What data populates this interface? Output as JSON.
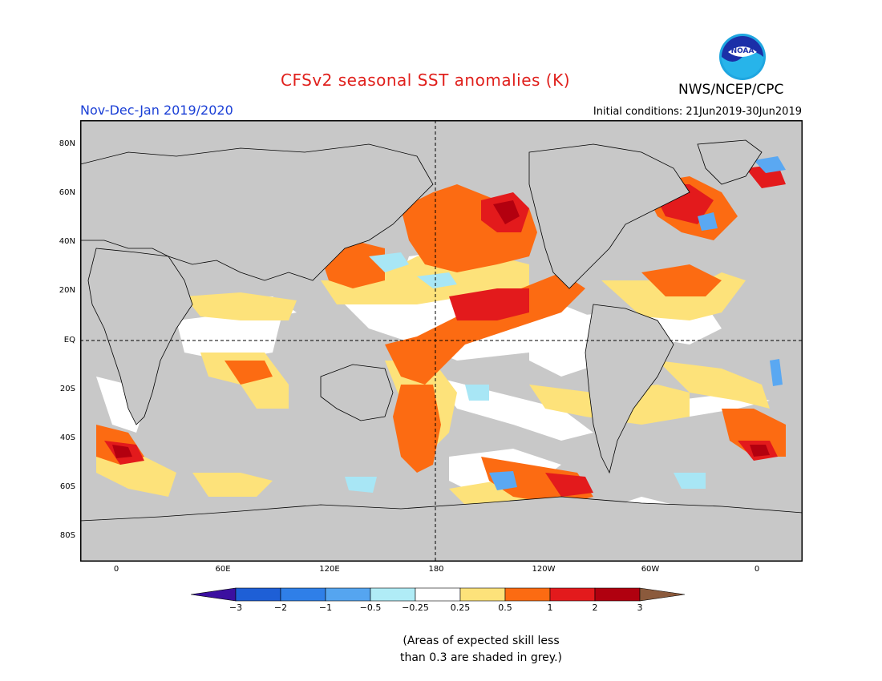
{
  "header": {
    "title": "CFSv2 seasonal SST anomalies (K)",
    "agency": "NWS/NCEP/CPC",
    "season": "Nov-Dec-Jan 2019/2020",
    "initial_conditions": "Initial conditions: 21Jun2019-30Jun2019",
    "logo_text": "NOAA"
  },
  "map": {
    "lat_labels": [
      "80N",
      "60N",
      "40N",
      "20N",
      "EQ",
      "20S",
      "40S",
      "60S",
      "80S"
    ],
    "lon_labels": [
      "0",
      "60E",
      "120E",
      "180",
      "120W",
      "60W",
      "0"
    ],
    "colors": {
      "land": "#c8c8c8",
      "neutral": "#ffffff",
      "light_warm": "#fde27a",
      "warm": "#fc6b12",
      "hot": "#e31a1c",
      "very_hot": "#b3000f",
      "light_cool": "#a8e6f5",
      "cool": "#5aa8f2",
      "cold": "#2263dd"
    }
  },
  "colorbar": {
    "ticks": [
      "−3",
      "−2",
      "−1",
      "−0.5",
      "−0.25",
      "0.25",
      "0.5",
      "1",
      "2",
      "3"
    ],
    "colors": [
      "#3b0fa0",
      "#1e5fd6",
      "#2f7fe8",
      "#55a5f0",
      "#b0ecf6",
      "#ffffff",
      "#fde27a",
      "#fc6b12",
      "#e31a1c",
      "#b0000f",
      "#8b5a3c"
    ]
  },
  "note": {
    "line1": "(Areas of expected skill less",
    "line2": "than 0.3 are shaded in grey.)"
  }
}
